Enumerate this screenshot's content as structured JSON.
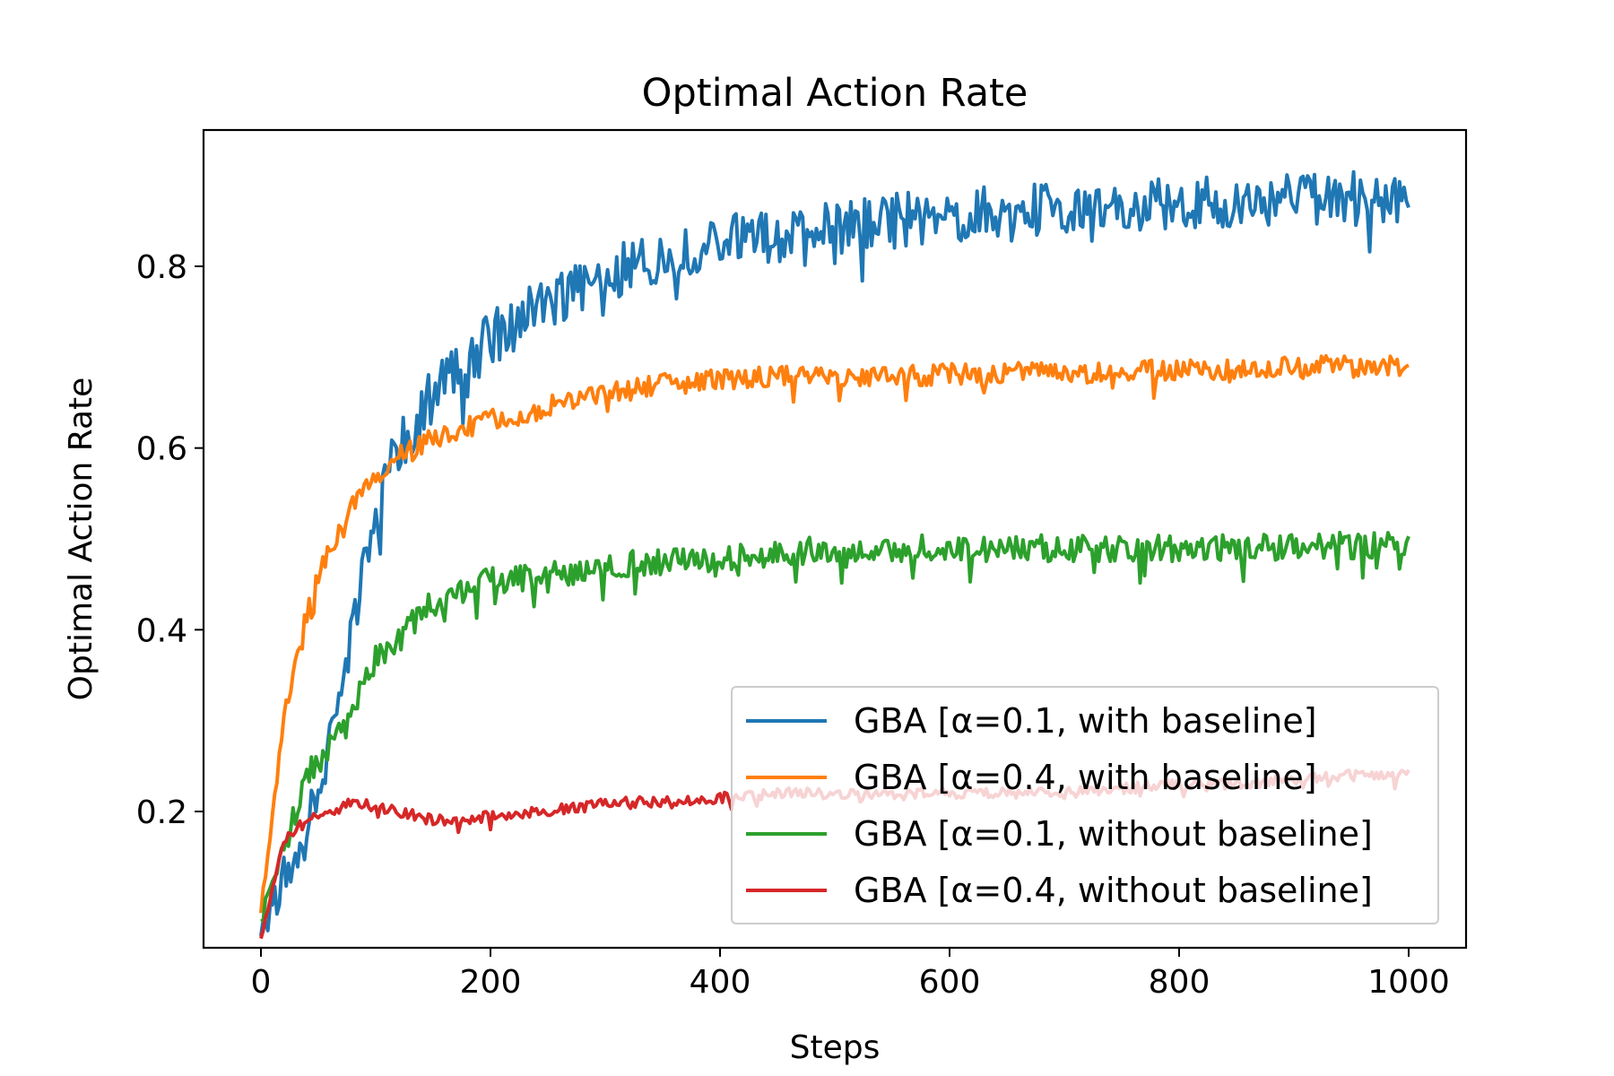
{
  "chart_data": {
    "type": "line",
    "title": "Optimal Action Rate",
    "xlabel": "Steps",
    "ylabel": "Optimal Action Rate",
    "xlim": [
      -50,
      1050
    ],
    "ylim": [
      0.05,
      0.95
    ],
    "xticks": [
      0,
      200,
      400,
      600,
      800,
      1000
    ],
    "yticks": [
      0.2,
      0.4,
      0.6,
      0.8
    ],
    "xtick_labels": [
      "0",
      "200",
      "400",
      "600",
      "800",
      "1000"
    ],
    "ytick_labels": [
      "0.2",
      "0.4",
      "0.6",
      "0.8"
    ],
    "grid": false,
    "legend_position": "lower right",
    "x": [
      0,
      20,
      40,
      60,
      80,
      100,
      120,
      150,
      200,
      250,
      300,
      350,
      400,
      450,
      500,
      550,
      600,
      650,
      700,
      750,
      800,
      850,
      900,
      950,
      1000
    ],
    "series": [
      {
        "name": "GBA [α=0.1, with baseline]",
        "color": "#1f77b4",
        "noise": 0.03,
        "values": [
          0.07,
          0.12,
          0.18,
          0.28,
          0.4,
          0.53,
          0.6,
          0.66,
          0.72,
          0.76,
          0.79,
          0.81,
          0.83,
          0.835,
          0.84,
          0.85,
          0.855,
          0.86,
          0.865,
          0.868,
          0.87,
          0.872,
          0.873,
          0.874,
          0.875
        ]
      },
      {
        "name": "GBA [α=0.4, with baseline]",
        "color": "#ff7f0e",
        "noise": 0.012,
        "values": [
          0.09,
          0.3,
          0.42,
          0.49,
          0.54,
          0.57,
          0.59,
          0.61,
          0.63,
          0.645,
          0.66,
          0.67,
          0.675,
          0.678,
          0.68,
          0.68,
          0.681,
          0.682,
          0.683,
          0.684,
          0.686,
          0.688,
          0.689,
          0.69,
          0.69
        ]
      },
      {
        "name": "GBA [α=0.1, without baseline]",
        "color": "#2ca02c",
        "noise": 0.015,
        "values": [
          0.08,
          0.16,
          0.24,
          0.27,
          0.31,
          0.37,
          0.39,
          0.43,
          0.455,
          0.46,
          0.47,
          0.475,
          0.48,
          0.485,
          0.488,
          0.489,
          0.49,
          0.49,
          0.49,
          0.49,
          0.49,
          0.49,
          0.49,
          0.493,
          0.495
        ]
      },
      {
        "name": "GBA [α=0.4, without baseline]",
        "color": "#d62728",
        "noise": 0.006,
        "values": [
          0.06,
          0.17,
          0.19,
          0.2,
          0.21,
          0.205,
          0.2,
          0.19,
          0.195,
          0.2,
          0.21,
          0.21,
          0.215,
          0.22,
          0.22,
          0.22,
          0.22,
          0.22,
          0.22,
          0.225,
          0.23,
          0.23,
          0.235,
          0.24,
          0.24
        ]
      }
    ]
  }
}
